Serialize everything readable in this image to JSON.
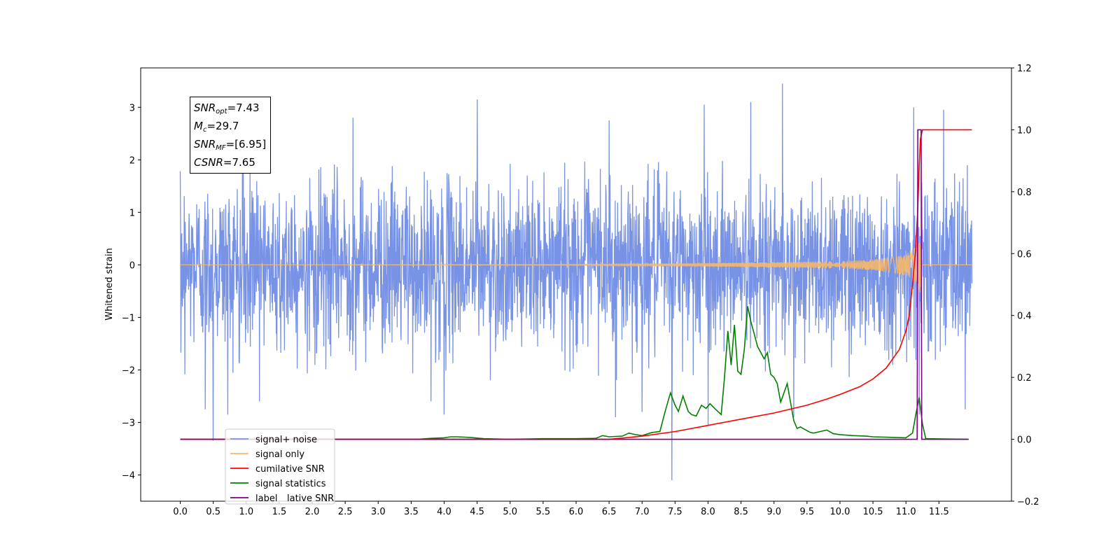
{
  "chart_data": {
    "type": "line",
    "title": "",
    "xlabel": "",
    "ylabel": "Whitened strain",
    "left_axis": {
      "ylim": [
        -4.5,
        3.75
      ],
      "yticks": [
        -4,
        -3,
        -2,
        -1,
        0,
        1,
        2,
        3
      ],
      "ytick_labels": [
        "−4",
        "−3",
        "−2",
        "−1",
        "0",
        "1",
        "2",
        "3"
      ]
    },
    "right_axis": {
      "ylim": [
        -0.2,
        1.2
      ],
      "yticks": [
        -0.2,
        0.0,
        0.2,
        0.4,
        0.6,
        0.8,
        1.0,
        1.2
      ],
      "ytick_labels": [
        "−0.2",
        "0.0",
        "0.2",
        "0.4",
        "0.6",
        "0.8",
        "1.0",
        "1.2"
      ]
    },
    "xlim": [
      -0.6,
      12.6
    ],
    "xticks": [
      0.0,
      0.5,
      1.0,
      1.5,
      2.0,
      2.5,
      3.0,
      3.5,
      4.0,
      4.5,
      5.0,
      5.5,
      6.0,
      6.5,
      7.0,
      7.5,
      8.0,
      8.5,
      9.0,
      9.5,
      10.0,
      10.5,
      11.0,
      11.5
    ],
    "xtick_labels": [
      "0.0",
      "0.5",
      "1.0",
      "1.5",
      "2.0",
      "2.5",
      "3.0",
      "3.5",
      "4.0",
      "4.5",
      "5.0",
      "5.5",
      "6.0",
      "6.5",
      "7.0",
      "7.5",
      "8.0",
      "8.5",
      "9.0",
      "9.5",
      "10.0",
      "10.5",
      "11.0",
      "11.5"
    ],
    "noise": {
      "x_range": [
        0.0,
        12.0
      ],
      "typical_range": [
        -1.6,
        2.0
      ],
      "peaks": [
        {
          "x": 9.13,
          "y": 3.45
        },
        {
          "x": 4.5,
          "y": 3.15
        },
        {
          "x": 8.65,
          "y": 3.1
        },
        {
          "x": 7.94,
          "y": 3.05
        },
        {
          "x": 11.12,
          "y": 3.0
        },
        {
          "x": 11.57,
          "y": 2.95
        },
        {
          "x": 2.62,
          "y": 2.8
        },
        {
          "x": 6.5,
          "y": 2.75
        },
        {
          "x": 7.45,
          "y": -4.1
        },
        {
          "x": 0.5,
          "y": -3.35
        },
        {
          "x": 0.38,
          "y": -2.75
        },
        {
          "x": 0.72,
          "y": -2.85
        },
        {
          "x": 4.0,
          "y": -2.85
        },
        {
          "x": 6.6,
          "y": -2.9
        },
        {
          "x": 7.0,
          "y": -2.8
        },
        {
          "x": 8.0,
          "y": -3.05
        },
        {
          "x": 9.3,
          "y": -2.9
        },
        {
          "x": 11.2,
          "y": -2.85
        },
        {
          "x": 11.9,
          "y": -2.75
        },
        {
          "x": 1.2,
          "y": -2.6
        },
        {
          "x": 3.8,
          "y": -2.6
        }
      ]
    },
    "signal_envelope": {
      "x": [
        0.0,
        6.0,
        8.0,
        9.0,
        10.0,
        10.5,
        11.0,
        11.15,
        11.22,
        11.25,
        12.0
      ],
      "amplitude": [
        0.0,
        0.01,
        0.03,
        0.05,
        0.07,
        0.1,
        0.2,
        0.35,
        0.55,
        0.0,
        0.0
      ]
    },
    "series": [
      {
        "name": "signal+ noise",
        "color": "#7893e6",
        "axis": "left"
      },
      {
        "name": "signal only",
        "color": "#f5b869",
        "axis": "left"
      },
      {
        "name": "cumilative SNR",
        "color": "#ff0000",
        "axis": "right",
        "x": [
          0.0,
          6.0,
          6.5,
          7.0,
          7.5,
          8.0,
          8.5,
          9.0,
          9.5,
          9.8,
          10.0,
          10.3,
          10.5,
          10.7,
          10.9,
          11.0,
          11.05,
          11.1,
          11.15,
          11.18,
          11.2,
          11.22,
          11.25,
          12.0
        ],
        "values": [
          0.0,
          0.0,
          0.0,
          0.01,
          0.025,
          0.045,
          0.065,
          0.085,
          0.11,
          0.13,
          0.145,
          0.17,
          0.195,
          0.23,
          0.29,
          0.35,
          0.4,
          0.5,
          0.62,
          0.75,
          0.88,
          0.97,
          1.0,
          1.0
        ]
      },
      {
        "name": "signal statistics",
        "color": "#008000",
        "axis": "right",
        "x": [
          0.0,
          3.6,
          3.8,
          4.0,
          4.1,
          4.2,
          4.4,
          4.6,
          5.0,
          5.5,
          6.0,
          6.3,
          6.4,
          6.5,
          6.7,
          6.8,
          6.9,
          7.0,
          7.15,
          7.27,
          7.35,
          7.43,
          7.5,
          7.55,
          7.62,
          7.7,
          7.75,
          7.82,
          7.9,
          7.97,
          8.03,
          8.1,
          8.2,
          8.25,
          8.3,
          8.35,
          8.4,
          8.45,
          8.5,
          8.55,
          8.6,
          8.65,
          8.7,
          8.75,
          8.8,
          8.85,
          8.9,
          8.95,
          9.0,
          9.05,
          9.1,
          9.15,
          9.2,
          9.25,
          9.3,
          9.35,
          9.4,
          9.5,
          9.55,
          9.6,
          9.7,
          9.8,
          9.9,
          10.0,
          10.2,
          10.4,
          10.5,
          11.0,
          11.1,
          11.15,
          11.2,
          11.25,
          11.3,
          11.95
        ],
        "values": [
          0.0,
          0.0,
          0.003,
          0.005,
          0.008,
          0.008,
          0.006,
          0.002,
          0.0,
          0.002,
          0.002,
          0.003,
          0.012,
          0.008,
          0.01,
          0.02,
          0.015,
          0.012,
          0.022,
          0.025,
          0.09,
          0.15,
          0.11,
          0.09,
          0.14,
          0.09,
          0.08,
          0.075,
          0.11,
          0.1,
          0.115,
          0.1,
          0.08,
          0.2,
          0.35,
          0.24,
          0.37,
          0.22,
          0.21,
          0.29,
          0.43,
          0.38,
          0.34,
          0.3,
          0.28,
          0.26,
          0.28,
          0.21,
          0.2,
          0.18,
          0.12,
          0.15,
          0.18,
          0.12,
          0.06,
          0.035,
          0.04,
          0.028,
          0.022,
          0.02,
          0.025,
          0.03,
          0.018,
          0.015,
          0.012,
          0.01,
          0.008,
          0.005,
          0.02,
          0.08,
          0.135,
          0.05,
          0.002,
          0.0
        ]
      },
      {
        "name": "label",
        "color": "#800080",
        "axis": "right",
        "x": [
          0.0,
          11.17,
          11.18,
          11.23,
          11.24,
          11.95
        ],
        "values": [
          0.0,
          0.0,
          1.0,
          1.0,
          0.0,
          0.0
        ]
      }
    ],
    "legend": {
      "position": "lower-left",
      "entries": [
        "signal+ noise",
        "signal only",
        "cumilative SNR",
        "signal statistics",
        "label"
      ],
      "obscured_text": "lative SNR"
    },
    "annotation": {
      "snr_opt_label": "SNR",
      "snr_opt_sub": "opt",
      "snr_opt_value": "=7.43",
      "mc_label": "M",
      "mc_sub": "c",
      "mc_value": "=29.7",
      "snr_mf_label": "SNR",
      "snr_mf_sub": "MF",
      "snr_mf_value": "=[6.95]",
      "csnr_label": "CSNR",
      "csnr_value": "=7.65"
    }
  }
}
